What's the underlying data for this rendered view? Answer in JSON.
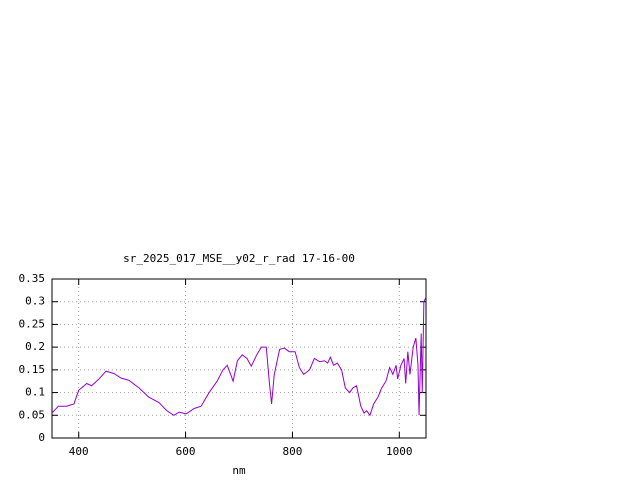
{
  "chart_data": {
    "type": "line",
    "title": "sr_2025_017_MSE__y02_r_rad 17-16-00",
    "x_label": "nm",
    "color": "#9400d3",
    "grid": true,
    "xlim": [
      350,
      1050
    ],
    "xticks": [
      400,
      600,
      800,
      1000
    ],
    "ylim": [
      0,
      0.35
    ],
    "yticks": [
      0,
      0.05,
      0.1,
      0.15,
      0.2,
      0.25,
      0.3,
      0.35
    ],
    "x": [
      350,
      362,
      377,
      391,
      400,
      415,
      424,
      438,
      451,
      466,
      479,
      494,
      513,
      531,
      550,
      565,
      578,
      588,
      601,
      616,
      629,
      644,
      659,
      670,
      678,
      689,
      697,
      706,
      715,
      723,
      734,
      742,
      751,
      757,
      761,
      766,
      776,
      785,
      794,
      805,
      813,
      821,
      832,
      841,
      851,
      860,
      866,
      871,
      877,
      884,
      892,
      899,
      907,
      913,
      920,
      928,
      934,
      939,
      945,
      952,
      960,
      967,
      975,
      982,
      988,
      994,
      997,
      1003,
      1009,
      1012,
      1016,
      1020,
      1026,
      1031,
      1035,
      1037,
      1041,
      1043,
      1046,
      1050
    ],
    "values": [
      0.055,
      0.07,
      0.07,
      0.075,
      0.105,
      0.12,
      0.115,
      0.13,
      0.147,
      0.142,
      0.132,
      0.127,
      0.11,
      0.09,
      0.078,
      0.06,
      0.05,
      0.057,
      0.053,
      0.065,
      0.07,
      0.1,
      0.125,
      0.15,
      0.16,
      0.125,
      0.17,
      0.183,
      0.175,
      0.158,
      0.185,
      0.2,
      0.2,
      0.12,
      0.075,
      0.14,
      0.195,
      0.198,
      0.19,
      0.19,
      0.155,
      0.14,
      0.15,
      0.175,
      0.168,
      0.17,
      0.165,
      0.178,
      0.16,
      0.165,
      0.15,
      0.11,
      0.1,
      0.11,
      0.115,
      0.07,
      0.055,
      0.06,
      0.05,
      0.075,
      0.09,
      0.11,
      0.125,
      0.155,
      0.14,
      0.16,
      0.13,
      0.16,
      0.175,
      0.12,
      0.19,
      0.14,
      0.2,
      0.22,
      0.16,
      0.05,
      0.23,
      0.1,
      0.3,
      0.31
    ]
  }
}
